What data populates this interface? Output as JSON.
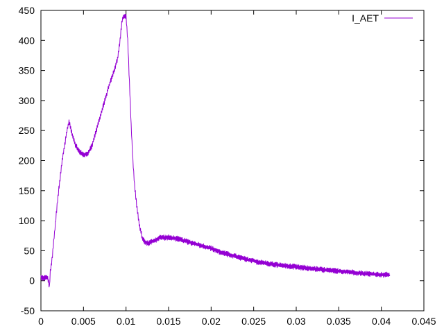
{
  "chart_data": {
    "type": "line",
    "title": "",
    "xlabel": "",
    "ylabel": "",
    "xlim": [
      0,
      0.045
    ],
    "ylim": [
      -50,
      450
    ],
    "x_ticks": [
      0,
      0.005,
      0.01,
      0.015,
      0.02,
      0.025,
      0.03,
      0.035,
      0.04,
      0.045
    ],
    "x_tick_labels": [
      "0",
      "0.005",
      "0.01",
      "0.015",
      "0.02",
      "0.025",
      "0.03",
      "0.035",
      "0.04",
      "0.045"
    ],
    "y_ticks": [
      -50,
      0,
      50,
      100,
      150,
      200,
      250,
      300,
      350,
      400,
      450
    ],
    "y_tick_labels": [
      "-50",
      "0",
      "50",
      "100",
      "150",
      "200",
      "250",
      "300",
      "350",
      "400",
      "450"
    ],
    "grid": false,
    "legend": "top-right",
    "series": [
      {
        "name": "I_AET",
        "color": "#9400d3",
        "noise": 5,
        "x": [
          0,
          0.0008,
          0.001,
          0.0011,
          0.0013,
          0.0016,
          0.002,
          0.0025,
          0.003,
          0.0033,
          0.0036,
          0.004,
          0.0045,
          0.005,
          0.0055,
          0.006,
          0.0065,
          0.007,
          0.0075,
          0.008,
          0.0085,
          0.009,
          0.0093,
          0.0095,
          0.0097,
          0.01,
          0.0102,
          0.0104,
          0.0106,
          0.0108,
          0.011,
          0.0113,
          0.0116,
          0.0119,
          0.0122,
          0.0126,
          0.013,
          0.0135,
          0.014,
          0.015,
          0.016,
          0.017,
          0.018,
          0.019,
          0.02,
          0.021,
          0.022,
          0.023,
          0.024,
          0.025,
          0.026,
          0.027,
          0.028,
          0.03,
          0.032,
          0.034,
          0.036,
          0.038,
          0.04,
          0.041
        ],
        "y": [
          5,
          5,
          -10,
          15,
          35,
          80,
          140,
          200,
          245,
          265,
          248,
          228,
          215,
          210,
          212,
          225,
          250,
          275,
          300,
          325,
          345,
          370,
          400,
          430,
          440,
          440,
          400,
          330,
          260,
          200,
          160,
          120,
          90,
          72,
          65,
          62,
          65,
          68,
          72,
          72,
          70,
          66,
          62,
          58,
          54,
          48,
          44,
          40,
          36,
          33,
          30,
          28,
          26,
          23,
          20,
          17,
          15,
          12,
          10,
          10
        ]
      }
    ]
  }
}
